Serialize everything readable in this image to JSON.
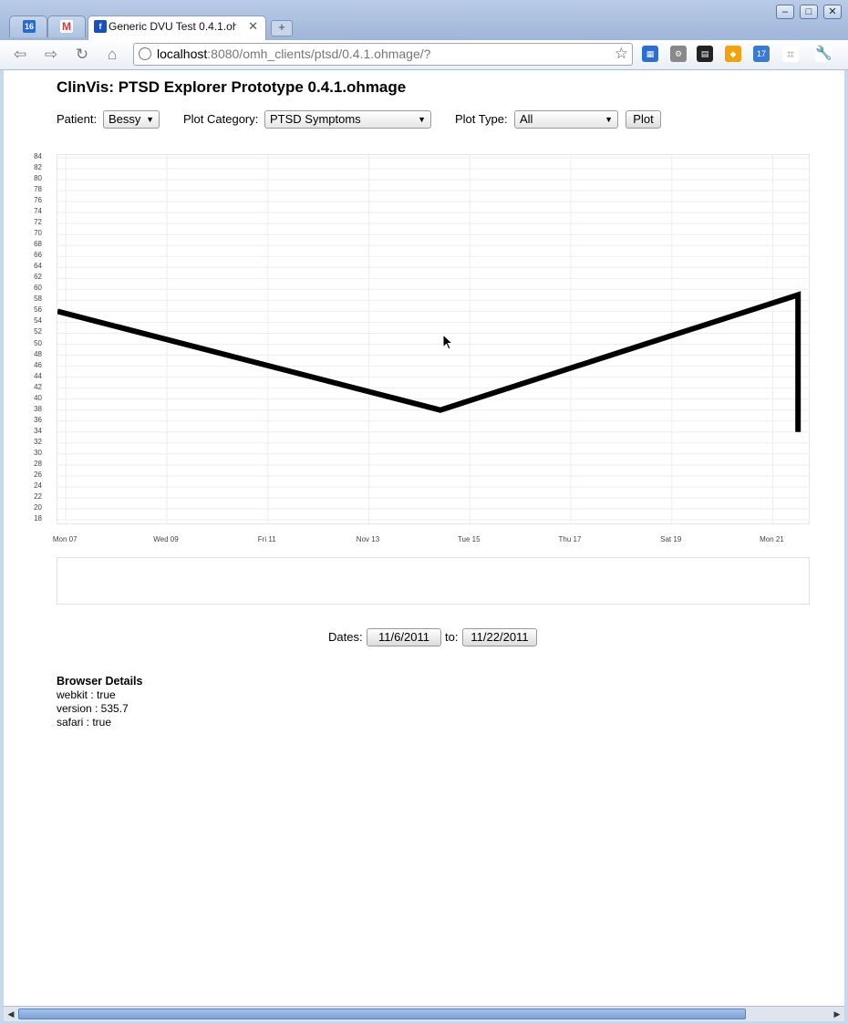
{
  "browser": {
    "tabs": [
      {
        "label": "16",
        "icon": "calendar-icon"
      },
      {
        "label": "",
        "icon": "gmail-icon"
      },
      {
        "label": "Generic DVU Test 0.4.1.ohmage",
        "icon": "app-favicon-icon",
        "active": true
      }
    ],
    "url_host": "localhost",
    "url_rest": ":8080/omh_clients/ptsd/0.4.1.ohmage/?",
    "extension_badge": "17"
  },
  "page": {
    "title": "ClinVis: PTSD Explorer Prototype 0.4.1.ohmage",
    "patient_label": "Patient:",
    "patient_value": "Bessy",
    "category_label": "Plot Category:",
    "category_value": "PTSD Symptoms",
    "type_label": "Plot Type:",
    "type_value": "All",
    "plot_button": "Plot",
    "dates_label": "Dates:",
    "date_from": "11/6/2011",
    "date_to_label": "to:",
    "date_to": "11/22/2011",
    "details_heading": "Browser Details",
    "details": [
      "webkit : true",
      "version : 535.7",
      "safari : true"
    ]
  },
  "chart_data": {
    "type": "line",
    "title": "",
    "xlabel": "",
    "ylabel": "",
    "x_tick_labels": [
      "Mon 07",
      "Wed 09",
      "Fri 11",
      "Nov 13",
      "Tue 15",
      "Thu 17",
      "Sat 19",
      "Mon 21"
    ],
    "y_tick_labels": [
      "18",
      "20",
      "22",
      "24",
      "26",
      "28",
      "30",
      "32",
      "34",
      "36",
      "38",
      "40",
      "42",
      "44",
      "46",
      "48",
      "50",
      "52",
      "54",
      "56",
      "58",
      "60",
      "62",
      "64",
      "66",
      "68",
      "70",
      "72",
      "74",
      "76",
      "78",
      "80",
      "82",
      "84"
    ],
    "ylim": [
      17,
      84.5
    ],
    "xlim": [
      "2011-11-06T20:00",
      "2011-11-21T18:00"
    ],
    "grid": true,
    "series": [
      {
        "color": "#000000",
        "points": [
          {
            "x": "2011-11-06T20:00",
            "y": 56
          },
          {
            "x": "2011-11-14T10:00",
            "y": 38
          },
          {
            "x": "2011-11-21T12:00",
            "y": 59
          },
          {
            "x": "2011-11-21T12:00",
            "y": 34
          }
        ]
      }
    ]
  }
}
